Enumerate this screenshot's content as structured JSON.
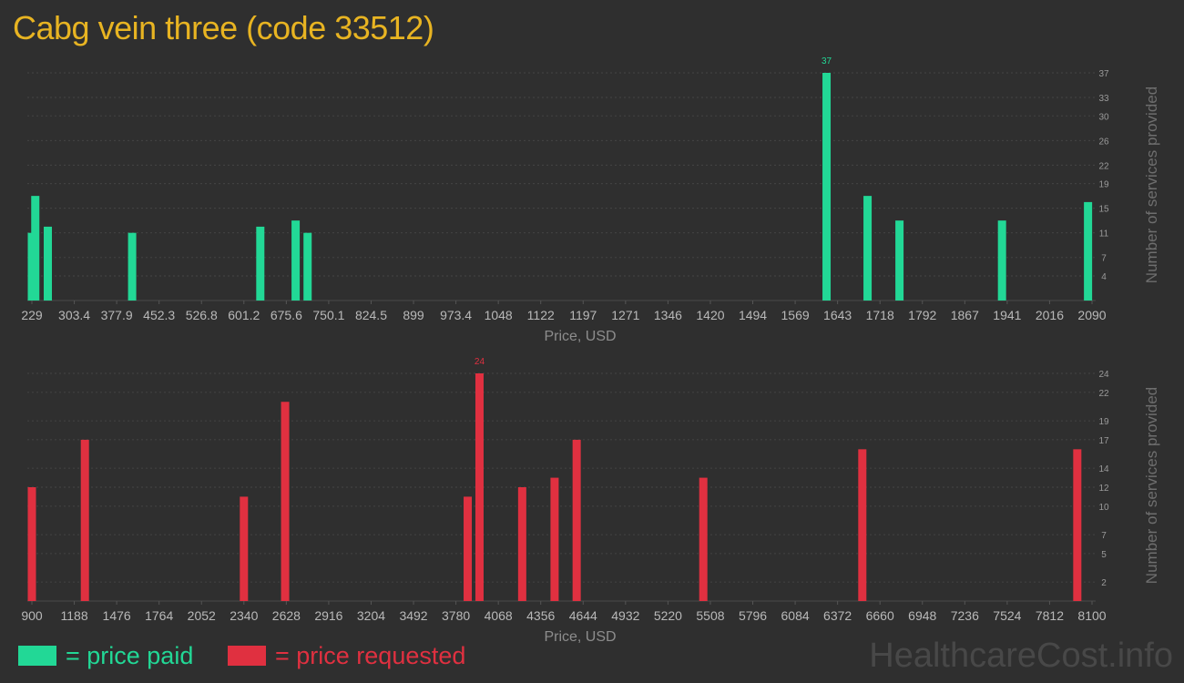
{
  "title": "Cabg vein three (code 33512)",
  "colors": {
    "paid": "#22d896",
    "requested": "#e03040",
    "title": "#e8b422"
  },
  "legend": {
    "paid_label": "= price paid",
    "requested_label": "= price requested"
  },
  "watermark": "HealthcareCost.info",
  "chart_data": [
    {
      "type": "bar",
      "name": "price paid",
      "xlabel": "Price, USD",
      "ylabel": "Number of services provided",
      "x_tick_labels": [
        "229",
        "303.4",
        "377.9",
        "452.3",
        "526.8",
        "601.2",
        "675.6",
        "750.1",
        "824.5",
        "899",
        "973.4",
        "1048",
        "1122",
        "1197",
        "1271",
        "1346",
        "1420",
        "1494",
        "1569",
        "1643",
        "1718",
        "1792",
        "1867",
        "1941",
        "2016",
        "2090"
      ],
      "y_ticks": [
        4,
        7,
        11,
        15,
        19,
        22,
        26,
        30,
        33,
        37
      ],
      "ylim": [
        0,
        37
      ],
      "grid": true,
      "points": [
        {
          "x": 229,
          "y": 11
        },
        {
          "x": 235,
          "y": 17
        },
        {
          "x": 257,
          "y": 12
        },
        {
          "x": 405,
          "y": 11
        },
        {
          "x": 630,
          "y": 12
        },
        {
          "x": 692,
          "y": 13
        },
        {
          "x": 713,
          "y": 11
        },
        {
          "x": 1624,
          "y": 37,
          "label": "37"
        },
        {
          "x": 1696,
          "y": 17
        },
        {
          "x": 1752,
          "y": 13
        },
        {
          "x": 1932,
          "y": 13
        },
        {
          "x": 2083,
          "y": 16
        }
      ]
    },
    {
      "type": "bar",
      "name": "price requested",
      "xlabel": "Price, USD",
      "ylabel": "Number of services provided",
      "x_tick_labels": [
        "900",
        "1188",
        "1476",
        "1764",
        "2052",
        "2340",
        "2628",
        "2916",
        "3204",
        "3492",
        "3780",
        "4068",
        "4356",
        "4644",
        "4932",
        "5220",
        "5508",
        "5796",
        "6084",
        "6372",
        "6660",
        "6948",
        "7236",
        "7524",
        "7812",
        "8100"
      ],
      "y_ticks": [
        2,
        5,
        7,
        10,
        12,
        14,
        17,
        19,
        22,
        24
      ],
      "ylim": [
        0,
        24
      ],
      "grid": true,
      "points": [
        {
          "x": 900,
          "y": 12
        },
        {
          "x": 1260,
          "y": 17
        },
        {
          "x": 2340,
          "y": 11
        },
        {
          "x": 2620,
          "y": 21
        },
        {
          "x": 3860,
          "y": 11
        },
        {
          "x": 3940,
          "y": 24,
          "label": "24"
        },
        {
          "x": 4230,
          "y": 12
        },
        {
          "x": 4450,
          "y": 13
        },
        {
          "x": 4600,
          "y": 17
        },
        {
          "x": 5460,
          "y": 13
        },
        {
          "x": 6540,
          "y": 16
        },
        {
          "x": 8000,
          "y": 16
        }
      ]
    }
  ]
}
